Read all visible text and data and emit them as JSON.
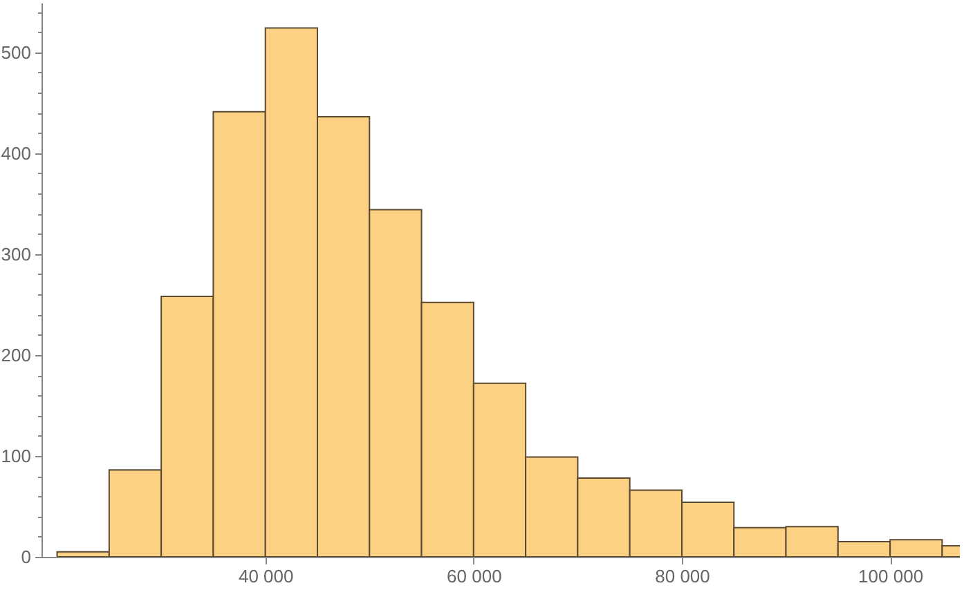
{
  "chart_data": {
    "type": "histogram",
    "color": "#fdd183",
    "bins": [
      20000,
      25000,
      30000,
      35000,
      40000,
      45000,
      50000,
      55000,
      60000,
      65000,
      70000,
      75000,
      80000,
      85000,
      90000,
      95000,
      100000,
      105000,
      110000
    ],
    "values": [
      5,
      86,
      258,
      441,
      524,
      436,
      344,
      252,
      172,
      99,
      78,
      66,
      54,
      29,
      30,
      15,
      17,
      11
    ],
    "xlim": [
      18500,
      106700
    ],
    "xticks": [
      40000,
      60000,
      80000,
      100000
    ],
    "ylim": [
      0,
      549
    ],
    "yticks": [
      0,
      {
        "value": 20,
        "label": null
      },
      {
        "value": 40,
        "label": null
      },
      {
        "value": 60,
        "label": null
      },
      {
        "value": 80,
        "label": null
      },
      100,
      {
        "value": 120,
        "label": null
      },
      {
        "value": 140,
        "label": null
      },
      {
        "value": 160,
        "label": null
      },
      {
        "value": 180,
        "label": null
      },
      200,
      {
        "value": 220,
        "label": null
      },
      {
        "value": 240,
        "label": null
      },
      {
        "value": 260,
        "label": null
      },
      {
        "value": 280,
        "label": null
      },
      300,
      {
        "value": 320,
        "label": null
      },
      {
        "value": 340,
        "label": null
      },
      {
        "value": 360,
        "label": null
      },
      {
        "value": 380,
        "label": null
      },
      400,
      {
        "value": 420,
        "label": null
      },
      {
        "value": 440,
        "label": null
      },
      {
        "value": 460,
        "label": null
      },
      {
        "value": 480,
        "label": null
      },
      500,
      {
        "value": 520,
        "label": null
      },
      {
        "value": 540,
        "label": null
      }
    ],
    "grid": false
  }
}
